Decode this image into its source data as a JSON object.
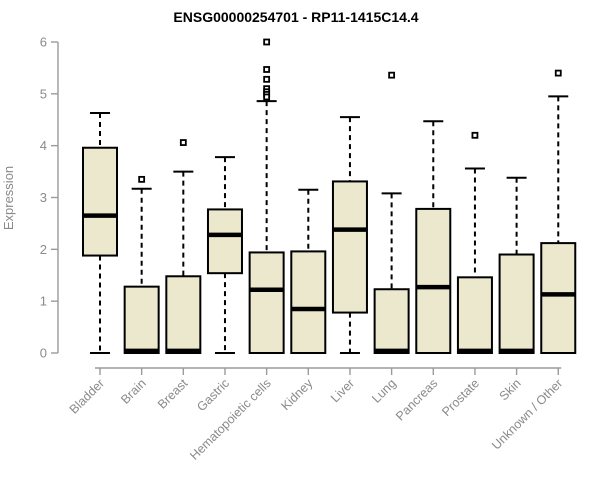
{
  "chart_data": {
    "type": "boxplot",
    "title": "ENSG00000254701 - RP11-1415C14.4",
    "ylabel": "Expression",
    "xlabel": "",
    "ylim": [
      0,
      6
    ],
    "yticks": [
      0,
      1,
      2,
      3,
      4,
      5,
      6
    ],
    "grid": false,
    "legend": false,
    "box_fill": "#ECE8CD",
    "box_border": "#000000",
    "median_color": "#000000",
    "whisker_color": "#000000",
    "axis_color": "#9b9b9b",
    "label_color": "#8a8a8a",
    "title_color": "#000000",
    "categories": [
      "Bladder",
      "Brain",
      "Breast",
      "Gastric",
      "Hematopoietic cells",
      "Kidney",
      "Liver",
      "Lung",
      "Pancreas",
      "Prostate",
      "Skin",
      "Unknown / Other"
    ],
    "series": [
      {
        "category": "Bladder",
        "whisker_low": 0,
        "q1": 1.88,
        "median": 2.65,
        "q3": 3.96,
        "whisker_high": 4.63,
        "outliers": []
      },
      {
        "category": "Brain",
        "whisker_low": 0,
        "q1": 0,
        "median": 0.04,
        "q3": 1.28,
        "whisker_high": 3.17,
        "outliers": [
          3.35
        ]
      },
      {
        "category": "Breast",
        "whisker_low": 0,
        "q1": 0,
        "median": 0.04,
        "q3": 1.48,
        "whisker_high": 3.5,
        "outliers": [
          4.06
        ]
      },
      {
        "category": "Gastric",
        "whisker_low": 0,
        "q1": 1.54,
        "median": 2.28,
        "q3": 2.77,
        "whisker_high": 3.78,
        "outliers": []
      },
      {
        "category": "Hematopoietic cells",
        "whisker_low": 0,
        "q1": 0,
        "median": 1.22,
        "q3": 1.94,
        "whisker_high": 4.86,
        "outliers": [
          6.0,
          5.47,
          5.28,
          5.1,
          5.04,
          4.99,
          4.94
        ]
      },
      {
        "category": "Kidney",
        "whisker_low": 0,
        "q1": 0,
        "median": 0.85,
        "q3": 1.96,
        "whisker_high": 3.15,
        "outliers": []
      },
      {
        "category": "Liver",
        "whisker_low": 0,
        "q1": 0.78,
        "median": 2.38,
        "q3": 3.31,
        "whisker_high": 4.55,
        "outliers": []
      },
      {
        "category": "Lung",
        "whisker_low": 0,
        "q1": 0,
        "median": 0.04,
        "q3": 1.23,
        "whisker_high": 3.08,
        "outliers": [
          5.36
        ]
      },
      {
        "category": "Pancreas",
        "whisker_low": 0,
        "q1": 0,
        "median": 1.27,
        "q3": 2.78,
        "whisker_high": 4.47,
        "outliers": []
      },
      {
        "category": "Prostate",
        "whisker_low": 0,
        "q1": 0,
        "median": 0.04,
        "q3": 1.46,
        "whisker_high": 3.56,
        "outliers": [
          4.2
        ]
      },
      {
        "category": "Skin",
        "whisker_low": 0,
        "q1": 0,
        "median": 0.04,
        "q3": 1.9,
        "whisker_high": 3.38,
        "outliers": []
      },
      {
        "category": "Unknown / Other",
        "whisker_low": 0,
        "q1": 0,
        "median": 1.13,
        "q3": 2.12,
        "whisker_high": 4.95,
        "outliers": [
          5.4
        ]
      }
    ]
  }
}
